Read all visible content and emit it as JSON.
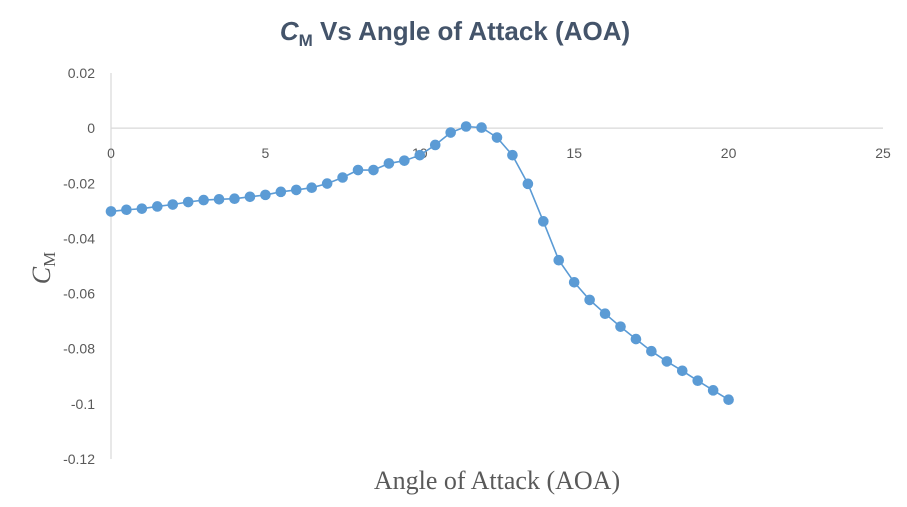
{
  "chart_data": {
    "type": "scatter",
    "title": {
      "base": "C",
      "subscript": "M",
      "rest": " Vs Angle of Attack (AOA)"
    },
    "xlabel": "Angle of Attack (AOA)",
    "ylabel": {
      "base": "C",
      "subscript": "M"
    },
    "xlim": [
      0,
      25
    ],
    "ylim": [
      -0.12,
      0.02
    ],
    "xticks": [
      0,
      5,
      10,
      15,
      20,
      25
    ],
    "yticks": [
      0.02,
      0,
      -0.02,
      -0.04,
      -0.06,
      -0.08,
      -0.1,
      -0.12
    ],
    "xtick_labels": [
      "0",
      "5",
      "10",
      "15",
      "20",
      "25"
    ],
    "ytick_labels": [
      "0.02",
      "0",
      "-0.02",
      "-0.04",
      "-0.06",
      "-0.08",
      "-0.1",
      "-0.12"
    ],
    "grid": false,
    "line_color": "#5b9bd5",
    "marker_color": "#5b9bd5",
    "axis_color": "#d9d9d9",
    "series": [
      {
        "x": [
          0,
          0.5,
          1,
          1.5,
          2,
          2.5,
          3,
          3.5,
          4,
          4.5,
          5,
          5.5,
          6,
          6.5,
          7,
          7.5,
          8,
          8.5,
          9,
          9.5,
          10,
          10.5,
          11,
          11.5,
          12,
          12.5,
          13,
          13.5,
          14,
          14.5,
          15,
          15.5,
          16,
          16.5,
          17,
          17.5,
          18,
          18.5,
          19,
          19.5,
          20
        ],
        "y": [
          -0.0302,
          -0.0296,
          -0.0292,
          -0.0284,
          -0.0277,
          -0.0268,
          -0.0261,
          -0.0258,
          -0.0256,
          -0.0249,
          -0.0242,
          -0.0231,
          -0.0224,
          -0.0216,
          -0.0201,
          -0.0179,
          -0.0152,
          -0.0152,
          -0.0128,
          -0.0118,
          -0.0098,
          -0.0061,
          -0.0016,
          0.0006,
          0.0002,
          -0.0034,
          -0.0098,
          -0.0202,
          -0.0338,
          -0.0479,
          -0.0559,
          -0.0623,
          -0.0673,
          -0.072,
          -0.0765,
          -0.0809,
          -0.0846,
          -0.088,
          -0.0916,
          -0.0951,
          -0.0985
        ]
      }
    ]
  }
}
